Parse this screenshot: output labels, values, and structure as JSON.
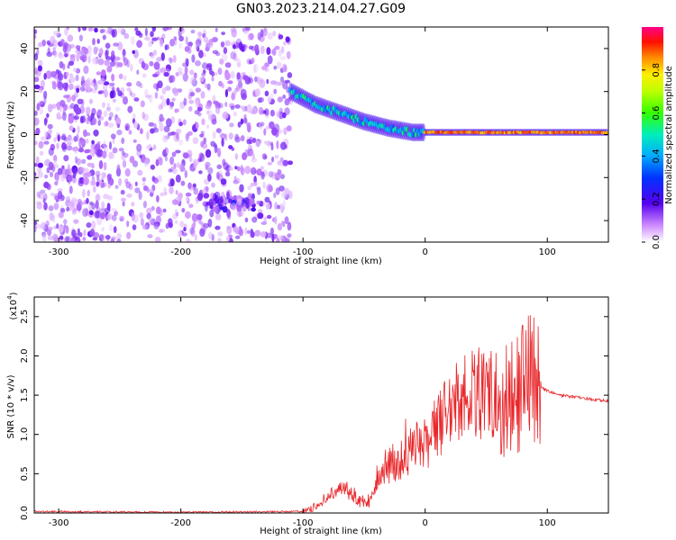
{
  "title": "GN03.2023.214.04.27.G09",
  "chart_data": [
    {
      "type": "heatmap",
      "xlabel": "Height of straight line (km)",
      "ylabel": "Frequency (Hz)",
      "xlim": [
        -320,
        150
      ],
      "ylim": [
        -50,
        50
      ],
      "xticks": [
        -300,
        -200,
        -100,
        0,
        100
      ],
      "yticks": [
        -40,
        -20,
        0,
        20,
        40
      ],
      "colorbar": {
        "label": "Normalized spectral amplitude",
        "range": [
          0,
          1
        ],
        "ticks": [
          "0.0",
          "0.2",
          "0.4",
          "0.6",
          "0.8"
        ]
      },
      "features": [
        {
          "region": "noise",
          "x": [
            -320,
            -110
          ],
          "y": [
            -50,
            50
          ],
          "amplitude": 0.1
        },
        {
          "region": "lower_trace",
          "x": [
            -180,
            -140
          ],
          "y": [
            -35,
            -28
          ],
          "amplitude": 0.15
        },
        {
          "region": "signal_band",
          "points": [
            [
              -110,
              20
            ],
            [
              -90,
              14
            ],
            [
              -70,
              10
            ],
            [
              -50,
              6
            ],
            [
              -30,
              3
            ],
            [
              -10,
              1
            ],
            [
              0,
              1
            ],
            [
              100,
              1
            ],
            [
              150,
              1
            ]
          ]
        }
      ]
    },
    {
      "type": "line",
      "xlabel": "Height of straight line (km)",
      "ylabel": "SNR (10 * v/v)",
      "yscale_label": "(x10",
      "yscale_exp": "4",
      "xlim": [
        -320,
        150
      ],
      "ylim": [
        0,
        2.75
      ],
      "xticks": [
        -300,
        -200,
        -100,
        0,
        100
      ],
      "yticks": [
        "0.0",
        "0.5",
        "1.0",
        "1.5",
        "2.0",
        "2.5"
      ],
      "series": [
        {
          "color": "#e8262a",
          "x": [
            -320,
            -200,
            -100,
            -90,
            -80,
            -70,
            -60,
            -50,
            -45,
            -40,
            -30,
            -20,
            -10,
            0,
            10,
            20,
            30,
            40,
            50,
            60,
            70,
            80,
            90,
            95,
            100,
            110,
            120,
            130,
            140,
            150
          ],
          "y": [
            0.02,
            0.01,
            0.02,
            0.08,
            0.2,
            0.3,
            0.25,
            0.1,
            0.15,
            0.45,
            0.6,
            0.7,
            0.8,
            0.9,
            1.1,
            1.3,
            1.45,
            1.55,
            1.55,
            1.5,
            1.55,
            1.6,
            1.65,
            1.6,
            1.55,
            1.5,
            1.48,
            1.46,
            1.44,
            1.43
          ]
        }
      ]
    }
  ]
}
